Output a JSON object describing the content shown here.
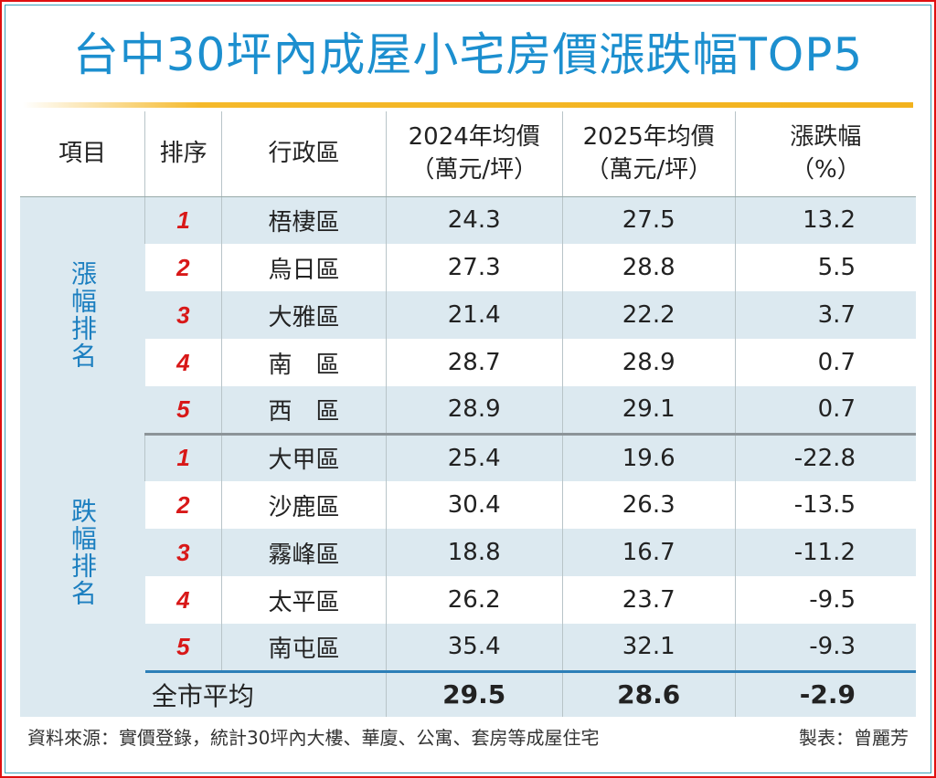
{
  "title": "台中30坪內成屋小宅房價漲跌幅TOP5",
  "headers": {
    "item": "項目",
    "rank": "排序",
    "district": "行政區",
    "y2024": "2024年均價",
    "y2024_unit": "（萬元/坪）",
    "y2025": "2025年均價",
    "y2025_unit": "（萬元/坪）",
    "change": "漲跌幅",
    "change_unit": "（%）"
  },
  "groups": {
    "rise": "漲幅排名",
    "fall": "跌幅排名"
  },
  "rise": [
    {
      "rank": "1",
      "district": "梧棲區",
      "p2024": "24.3",
      "p2025": "27.5",
      "change": "13.2"
    },
    {
      "rank": "2",
      "district": "烏日區",
      "p2024": "27.3",
      "p2025": "28.8",
      "change": "5.5"
    },
    {
      "rank": "3",
      "district": "大雅區",
      "p2024": "21.4",
      "p2025": "22.2",
      "change": "3.7"
    },
    {
      "rank": "4",
      "district": "南　區",
      "p2024": "28.7",
      "p2025": "28.9",
      "change": "0.7"
    },
    {
      "rank": "5",
      "district": "西　區",
      "p2024": "28.9",
      "p2025": "29.1",
      "change": "0.7"
    }
  ],
  "fall": [
    {
      "rank": "1",
      "district": "大甲區",
      "p2024": "25.4",
      "p2025": "19.6",
      "change": "-22.8"
    },
    {
      "rank": "2",
      "district": "沙鹿區",
      "p2024": "30.4",
      "p2025": "26.3",
      "change": "-13.5"
    },
    {
      "rank": "3",
      "district": "霧峰區",
      "p2024": "18.8",
      "p2025": "16.7",
      "change": "-11.2"
    },
    {
      "rank": "4",
      "district": "太平區",
      "p2024": "26.2",
      "p2025": "23.7",
      "change": "-9.5"
    },
    {
      "rank": "5",
      "district": "南屯區",
      "p2024": "35.4",
      "p2025": "32.1",
      "change": "-9.3"
    }
  ],
  "average": {
    "label": "全市平均",
    "p2024": "29.5",
    "p2025": "28.6",
    "change": "-2.9"
  },
  "footer": {
    "source": "資料來源：實價登錄，統計30坪內大樓、華廈、公寓、套房等成屋住宅",
    "credit": "製表：曾麗芳"
  }
}
